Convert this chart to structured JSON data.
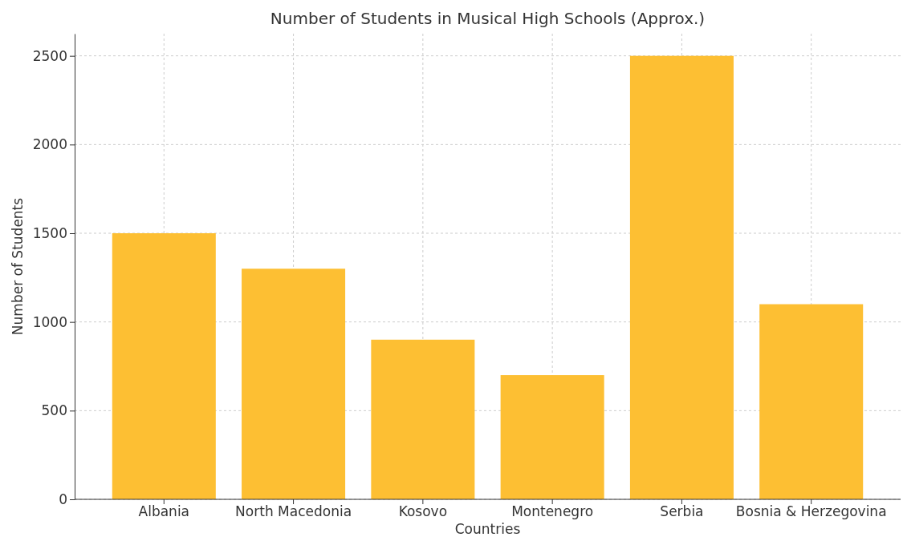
{
  "chart_data": {
    "type": "bar",
    "title": "Number of Students in Musical High Schools (Approx.)",
    "xlabel": "Countries",
    "ylabel": "Number of Students",
    "categories": [
      "Albania",
      "North Macedonia",
      "Kosovo",
      "Montenegro",
      "Serbia",
      "Bosnia & Herzegovina"
    ],
    "values": [
      1500,
      1300,
      900,
      700,
      2500,
      1100
    ],
    "color": "#fdbf33",
    "ylim": [
      0,
      2625
    ],
    "yticks": [
      0,
      500,
      1000,
      1500,
      2000,
      2500
    ],
    "grid": true
  }
}
